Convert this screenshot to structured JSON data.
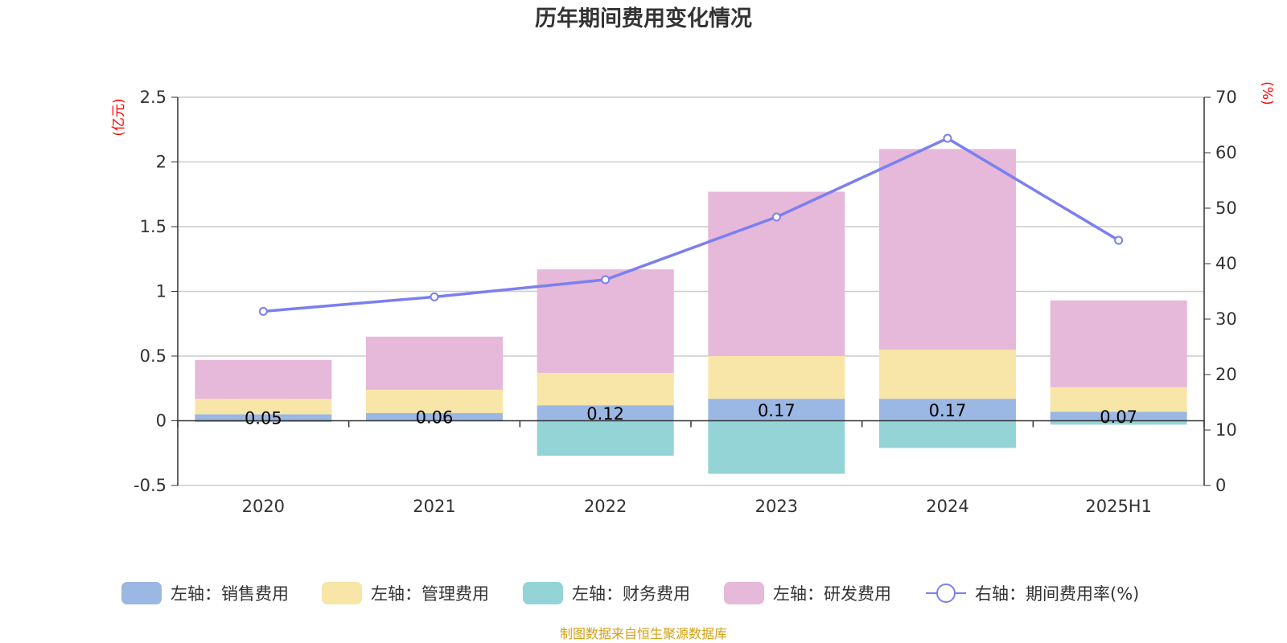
{
  "chart_data": {
    "type": "bar",
    "title": "历年期间费用变化情况",
    "categories": [
      "2020",
      "2021",
      "2022",
      "2023",
      "2024",
      "2025H1"
    ],
    "left_axis": {
      "unit": "(亿元)",
      "ylim": [
        -0.5,
        2.5
      ],
      "ticks": [
        "-0.5",
        "0",
        "0.5",
        "1",
        "1.5",
        "2",
        "2.5"
      ]
    },
    "right_axis": {
      "unit": "(%)",
      "ylim": [
        0,
        70
      ],
      "ticks": [
        "0",
        "10",
        "20",
        "30",
        "40",
        "50",
        "60",
        "70"
      ]
    },
    "series": [
      {
        "name": "左轴：销售费用",
        "type": "bar",
        "axis": "left",
        "color": "#9bb7e3",
        "values": [
          0.05,
          0.06,
          0.12,
          0.17,
          0.17,
          0.07
        ],
        "labels": [
          "0.05",
          "0.06",
          "0.12",
          "0.17",
          "0.17",
          "0.07"
        ]
      },
      {
        "name": "左轴：管理费用",
        "type": "bar",
        "axis": "left",
        "color": "#f8e6a8",
        "values": [
          0.12,
          0.18,
          0.25,
          0.33,
          0.38,
          0.19
        ]
      },
      {
        "name": "左轴：财务费用",
        "type": "bar",
        "axis": "left",
        "color": "#95d4d6",
        "values": [
          -0.01,
          0.0,
          -0.27,
          -0.41,
          -0.21,
          -0.03
        ]
      },
      {
        "name": "左轴：研发费用",
        "type": "bar",
        "axis": "left",
        "color": "#e6b8d9",
        "values": [
          0.3,
          0.41,
          0.8,
          1.27,
          1.55,
          0.67
        ]
      },
      {
        "name": "右轴：期间费用率(%)",
        "type": "line",
        "axis": "right",
        "color": "#7b7ff0",
        "values": [
          31.4,
          34.0,
          37.1,
          48.4,
          62.6,
          44.2
        ]
      }
    ],
    "grid": true,
    "legend_position": "bottom"
  },
  "footer": {
    "source": "制图数据来自恒生聚源数据库",
    "source_color": "#d4a017"
  }
}
